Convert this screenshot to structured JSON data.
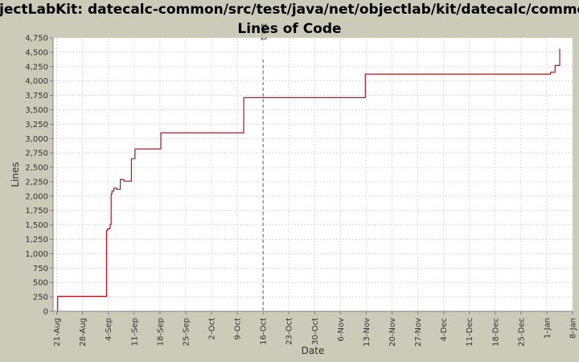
{
  "chart_data": {
    "type": "line",
    "title_line1": "ObjectLabKit: datecalc-common/src/test/java/net/objectlab/kit/datecalc/common/",
    "title_line2": "Lines of Code",
    "xlabel": "Date",
    "ylabel": "Lines",
    "ylim": [
      0,
      4750
    ],
    "y_ticks": [
      0,
      250,
      500,
      750,
      1000,
      1250,
      1500,
      1750,
      2000,
      2250,
      2500,
      2750,
      3000,
      3250,
      3500,
      3750,
      4000,
      4250,
      4500,
      4750
    ],
    "y_tick_labels": [
      "0",
      "250",
      "500",
      "750",
      "1,000",
      "1,250",
      "1,500",
      "1,750",
      "2,000",
      "2,250",
      "2,500",
      "2,750",
      "3,000",
      "3,250",
      "3,500",
      "3,750",
      "4,000",
      "4,250",
      "4,500",
      "4,750"
    ],
    "x_start_date": "2006-08-20",
    "x_end_date": "2007-01-08",
    "x_ticks": [
      "2006-08-21",
      "2006-08-28",
      "2006-09-04",
      "2006-09-11",
      "2006-09-18",
      "2006-09-25",
      "2006-10-02",
      "2006-10-09",
      "2006-10-16",
      "2006-10-23",
      "2006-10-30",
      "2006-11-06",
      "2006-11-13",
      "2006-11-20",
      "2006-11-27",
      "2006-12-04",
      "2006-12-11",
      "2006-12-18",
      "2006-12-25",
      "2007-01-01",
      "2007-01-08"
    ],
    "x_tick_labels": [
      "21-Aug",
      "28-Aug",
      "4-Sep",
      "11-Sep",
      "18-Sep",
      "25-Sep",
      "2-Oct",
      "9-Oct",
      "16-Oct",
      "23-Oct",
      "30-Oct",
      "6-Nov",
      "13-Nov",
      "20-Nov",
      "27-Nov",
      "4-Dec",
      "11-Dec",
      "18-Dec",
      "25-Dec",
      "1-Jan",
      "8-Jan"
    ],
    "grid": true,
    "series": [
      {
        "values_x": [
          "2006-08-21T00:00",
          "2006-08-21T06:00",
          "2006-09-03T12:00",
          "2006-09-03T18:00",
          "2006-09-04T06:00",
          "2006-09-04T12:00",
          "2006-09-04T18:00",
          "2006-09-05T00:00",
          "2006-09-05T12:00",
          "2006-09-06T06:00",
          "2006-09-07T06:00",
          "2006-09-08T06:00",
          "2006-09-10T06:00",
          "2006-09-10T12:00",
          "2006-09-11T06:00",
          "2006-09-18T06:00",
          "2006-10-10T18:00",
          "2006-11-12T18:00",
          "2007-01-02T00:00",
          "2007-01-03T06:00",
          "2007-01-04T00:00",
          "2007-01-04T12:00"
        ],
        "values_y": [
          0,
          260,
          1400,
          1430,
          1440,
          1510,
          2040,
          2090,
          2140,
          2120,
          2290,
          2260,
          2650,
          2650,
          2820,
          3100,
          3710,
          4120,
          4150,
          4270,
          4270,
          4560
        ]
      }
    ],
    "series_color": "#b8141b",
    "marker": {
      "date": "2006-10-16",
      "label": "1.0.1"
    }
  }
}
